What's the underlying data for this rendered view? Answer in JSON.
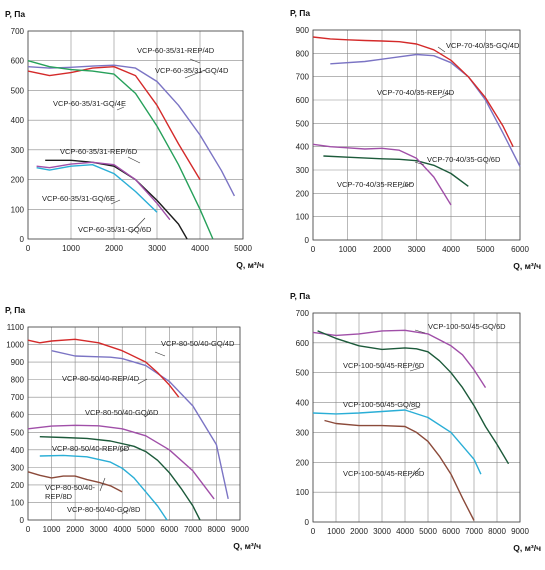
{
  "chart_data": [
    {
      "type": "line",
      "ylabel": "Р, Па",
      "xlabel": "Q, м³/ч",
      "xlim": [
        0,
        5000
      ],
      "xticks": [
        0,
        1000,
        2000,
        3000,
        4000,
        5000
      ],
      "ylim": [
        0,
        700
      ],
      "yticks": [
        0,
        100,
        200,
        300,
        400,
        500,
        600,
        700
      ],
      "grid": true,
      "series": [
        {
          "name": "VCP-60-35/31-REP/4D",
          "color": "#d42a2a",
          "x": [
            0,
            500,
            1000,
            1500,
            2000,
            2500,
            3000,
            3500,
            4000
          ],
          "y": [
            565,
            550,
            560,
            575,
            580,
            550,
            450,
            320,
            200
          ]
        },
        {
          "name": "VCP-60-35/31-GQ/4D",
          "color": "#7b74c4",
          "x": [
            0,
            500,
            1000,
            1500,
            2000,
            2500,
            3000,
            3500,
            4000,
            4500,
            4800
          ],
          "y": [
            580,
            575,
            578,
            582,
            585,
            575,
            530,
            450,
            350,
            230,
            145
          ]
        },
        {
          "name": "VCP-60-35/31-GQ/4E",
          "color": "#26a05a",
          "x": [
            0,
            500,
            1000,
            1500,
            2000,
            2500,
            3000,
            3500,
            4000,
            4300
          ],
          "y": [
            600,
            580,
            570,
            565,
            555,
            490,
            380,
            250,
            100,
            0
          ]
        },
        {
          "name": "VCP-60-35/31-REP/6D",
          "color": "#1c1c1c",
          "x": [
            400,
            1000,
            1500,
            2000,
            2500,
            3000,
            3500,
            3700
          ],
          "y": [
            265,
            265,
            258,
            245,
            200,
            130,
            50,
            0
          ]
        },
        {
          "name": "VCP-60-35/31-GQ/6E",
          "color": "#2aaed6",
          "x": [
            200,
            500,
            1000,
            1500,
            2000,
            2500,
            3000
          ],
          "y": [
            240,
            232,
            245,
            250,
            220,
            160,
            90
          ]
        },
        {
          "name": "VCP-60-35/31-GQ/6D",
          "color": "#a04fa8",
          "x": [
            200,
            500,
            1000,
            1500,
            2000,
            2500,
            3000,
            3300
          ],
          "y": [
            245,
            240,
            252,
            258,
            250,
            200,
            120,
            65
          ]
        }
      ]
    },
    {
      "type": "line",
      "ylabel": "Р, Па",
      "xlabel": "Q, м³/ч",
      "xlim": [
        0,
        6000
      ],
      "xticks": [
        0,
        1000,
        2000,
        3000,
        4000,
        5000,
        6000
      ],
      "ylim": [
        0,
        900
      ],
      "yticks": [
        0,
        100,
        200,
        300,
        400,
        500,
        600,
        700,
        800,
        900
      ],
      "grid": true,
      "series": [
        {
          "name": "VCP-70-40/35-GQ/4D",
          "color": "#7b74c4",
          "x": [
            500,
            1500,
            2500,
            3000,
            3500,
            4000,
            4500,
            5000,
            5500,
            6000
          ],
          "y": [
            755,
            765,
            785,
            795,
            790,
            760,
            700,
            600,
            460,
            315
          ]
        },
        {
          "name": "VCP-70-40/35-REP/4D",
          "color": "#d42a2a",
          "x": [
            0,
            500,
            1000,
            1500,
            2000,
            2500,
            3000,
            3500,
            4000,
            4500,
            5000,
            5500,
            5800
          ],
          "y": [
            870,
            862,
            858,
            855,
            853,
            850,
            840,
            815,
            770,
            700,
            610,
            490,
            400
          ]
        },
        {
          "name": "VCP-70-40/35-GQ/6D",
          "color": "#1c5a3a",
          "x": [
            300,
            1000,
            2000,
            2500,
            3000,
            3500,
            4000,
            4500
          ],
          "y": [
            360,
            355,
            348,
            346,
            340,
            320,
            285,
            230
          ]
        },
        {
          "name": "VCP-70-40/35-REP/6D",
          "color": "#a04fa8",
          "x": [
            0,
            500,
            1000,
            1500,
            2000,
            2500,
            3000,
            3500,
            4000
          ],
          "y": [
            410,
            400,
            395,
            390,
            393,
            385,
            350,
            270,
            150
          ]
        }
      ]
    },
    {
      "type": "line",
      "ylabel": "Р, Па",
      "xlabel": "Q, м³/ч",
      "xlim": [
        0,
        9000
      ],
      "xticks": [
        0,
        1000,
        2000,
        3000,
        4000,
        5000,
        6000,
        7000,
        8000,
        9000
      ],
      "ylim": [
        0,
        1100
      ],
      "yticks": [
        0,
        100,
        200,
        300,
        400,
        500,
        600,
        700,
        800,
        900,
        1000,
        1100
      ],
      "grid": true,
      "series": [
        {
          "name": "VCP-80-50/40-GQ/4D",
          "color": "#7b74c4",
          "x": [
            1000,
            2000,
            3000,
            3500,
            4000,
            5000,
            6000,
            7000,
            8000,
            8500
          ],
          "y": [
            965,
            935,
            930,
            928,
            920,
            880,
            790,
            650,
            430,
            120
          ]
        },
        {
          "name": "VCP-80-50/40-REP/4D",
          "color": "#d42a2a",
          "x": [
            0,
            500,
            1000,
            2000,
            3000,
            4000,
            5000,
            5500,
            6000,
            6400
          ],
          "y": [
            1025,
            1010,
            1020,
            1030,
            1010,
            965,
            900,
            840,
            770,
            700
          ]
        },
        {
          "name": "VCP-80-50/40-GQ/6D",
          "color": "#a04fa8",
          "x": [
            0,
            1000,
            2000,
            3000,
            4000,
            5000,
            6000,
            7000,
            7900
          ],
          "y": [
            520,
            535,
            540,
            537,
            520,
            480,
            400,
            280,
            120
          ]
        },
        {
          "name": "VCP-80-50/40-REP/6D",
          "color": "#1c5a3a",
          "x": [
            500,
            1500,
            2500,
            3500,
            4500,
            5000,
            5500,
            6000,
            6500,
            7000,
            7300
          ],
          "y": [
            475,
            470,
            465,
            450,
            420,
            390,
            340,
            270,
            180,
            80,
            0
          ]
        },
        {
          "name": "VCP-80-50/40-GQ/8D",
          "color": "#2aaed6",
          "x": [
            500,
            1500,
            2500,
            3500,
            4000,
            4500,
            5000,
            5500,
            5900
          ],
          "y": [
            365,
            368,
            360,
            330,
            295,
            240,
            160,
            80,
            0
          ]
        },
        {
          "name": "VCP-80-50/40-REP/8D",
          "color": "#8b4a3a",
          "x": [
            0,
            500,
            1000,
            1500,
            2000,
            2500,
            3000,
            3500,
            4000
          ],
          "y": [
            275,
            255,
            240,
            250,
            250,
            230,
            215,
            195,
            160
          ]
        }
      ]
    },
    {
      "type": "line",
      "ylabel": "Р, Па",
      "xlabel": "Q, м³/ч",
      "xlim": [
        0,
        9000
      ],
      "xticks": [
        0,
        1000,
        2000,
        3000,
        4000,
        5000,
        6000,
        7000,
        8000,
        9000
      ],
      "ylim": [
        0,
        700
      ],
      "yticks": [
        0,
        100,
        200,
        300,
        400,
        500,
        600,
        700
      ],
      "grid": true,
      "series": [
        {
          "name": "VCP-100-50/45-GQ/6D",
          "color": "#a04fa8",
          "x": [
            0,
            1000,
            2000,
            3000,
            4000,
            5000,
            6000,
            6500,
            7000,
            7500
          ],
          "y": [
            635,
            625,
            630,
            640,
            642,
            630,
            590,
            560,
            510,
            450
          ]
        },
        {
          "name": "VCP-100-50/45-REP/6D",
          "color": "#1c5a3a",
          "x": [
            200,
            1000,
            2000,
            3000,
            4000,
            4500,
            5000,
            5500,
            6000,
            6500,
            7000,
            7500,
            8000,
            8500
          ],
          "y": [
            640,
            615,
            590,
            578,
            583,
            580,
            570,
            540,
            500,
            450,
            390,
            320,
            260,
            195
          ]
        },
        {
          "name": "VCP-100-50/45-GQ/8D",
          "color": "#2aaed6",
          "x": [
            0,
            1000,
            2000,
            3000,
            4000,
            5000,
            6000,
            7000,
            7300
          ],
          "y": [
            365,
            362,
            365,
            370,
            375,
            350,
            300,
            210,
            160
          ]
        },
        {
          "name": "VCP-100-50/45-REP/8D",
          "color": "#8b4a3a",
          "x": [
            500,
            1000,
            2000,
            3000,
            4000,
            4500,
            5000,
            5500,
            6000,
            6500,
            7000
          ],
          "y": [
            340,
            330,
            323,
            323,
            320,
            300,
            270,
            220,
            160,
            80,
            5
          ]
        }
      ]
    }
  ],
  "labels": [
    [
      "VCP-60-35/31-REP/4D",
      "VCP-60-35/31-GQ/4D",
      "VCP-60-35/31-GQ/4E",
      "VCP-60-35/31-REP/6D",
      "VCP-60-35/31-GQ/6E",
      "VCP-60-35/31-GQ/6D"
    ],
    [
      "VCP-70-40/35-GQ/4D",
      "VCP-70-40/35-REP/4D",
      "VCP-70-40/35-GQ/6D",
      "VCP-70-40/35-REP/6D"
    ],
    [
      "VCP-80-50/40-GQ/4D",
      "VCP-80-50/40-REP/4D",
      "VCP-80-50/40-GQ/6D",
      "VCP-80-50/40-REP/6D",
      "VCP-80-50/40-",
      "REP/8D",
      "VCP-80-50/40-GQ/8D"
    ],
    [
      "VCP-100-50/45-GQ/6D",
      "VCP-100-50/45-REP/6D",
      "VCP-100-50/45-GQ/8D",
      "VCP-100-50/45-REP/8D"
    ]
  ]
}
